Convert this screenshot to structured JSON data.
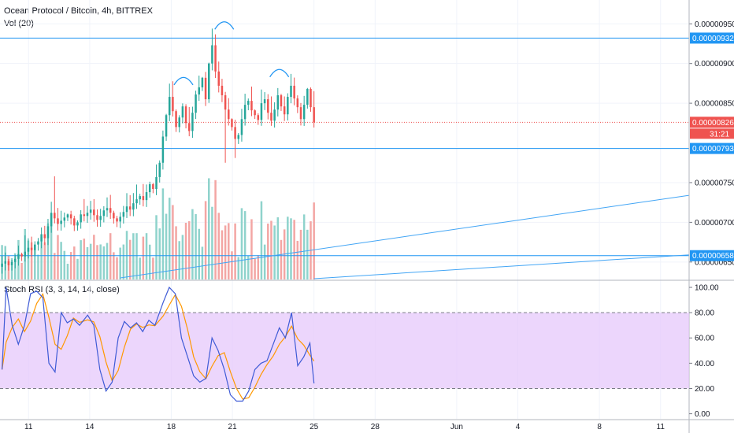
{
  "header": {
    "title": "Ocean Protocol / Bitcoin, 4h, BITTREX",
    "volume_label": "Vol (20)"
  },
  "colors": {
    "up": "#26a69a",
    "down": "#ef5350",
    "vol_up": "#8fd3cc",
    "vol_down": "#f3a6a4",
    "hline": "#2196f3",
    "trend": "#42a5f5",
    "rsi_k": "#3f5bd6",
    "rsi_d": "#ff9800",
    "rsi_band": "#e6c8fb",
    "pattern": "#2196f3",
    "price_tag": "#ef5350",
    "level_tag": "#2196f3"
  },
  "price_panel": {
    "y_ticks": [
      {
        "value": 9.5e-06,
        "label": "0.00000950"
      },
      {
        "value": 9e-06,
        "label": "0.00000900"
      },
      {
        "value": 8.5e-06,
        "label": "0.00000850"
      },
      {
        "value": 7.5e-06,
        "label": "0.00000750"
      },
      {
        "value": 7e-06,
        "label": "0.00000700"
      },
      {
        "value": 6.5e-06,
        "label": "0.00000650"
      }
    ],
    "ylim": [
      6.28e-06,
      9.8e-06
    ],
    "levels": [
      {
        "value": 9.32e-06,
        "label": "0.00000932"
      },
      {
        "value": 7.93e-06,
        "label": "0.00000793"
      },
      {
        "value": 6.58e-06,
        "label": "0.00000658"
      }
    ],
    "last_price": {
      "value": 8.26e-06,
      "label": "0.00000826",
      "countdown": "31:21"
    }
  },
  "rsi_panel": {
    "title": "Stoch RSI (3, 3, 14, 14, close)",
    "y_ticks": [
      {
        "value": 100,
        "label": "100.00"
      },
      {
        "value": 80,
        "label": "80.00"
      },
      {
        "value": 60,
        "label": "60.00"
      },
      {
        "value": 40,
        "label": "40.00"
      },
      {
        "value": 20,
        "label": "20.00"
      },
      {
        "value": 0,
        "label": "0.00"
      }
    ],
    "ylim": [
      -4,
      105
    ],
    "band": [
      20,
      80
    ]
  },
  "x_axis": {
    "ticks": [
      {
        "day": 11,
        "label": "11"
      },
      {
        "day": 14,
        "label": "14"
      },
      {
        "day": 18,
        "label": "18"
      },
      {
        "day": 21,
        "label": "21"
      },
      {
        "day": 25,
        "label": "25"
      },
      {
        "day": 28,
        "label": "28"
      },
      {
        "day": 32,
        "label": "Jun"
      },
      {
        "day": 35,
        "label": "4"
      },
      {
        "day": 39,
        "label": "8"
      },
      {
        "day": 42,
        "label": "11"
      }
    ],
    "xlim": [
      9.6,
      43.4
    ]
  },
  "chart_data": {
    "type": "candlestick",
    "title": "Ocean Protocol / Bitcoin, 4h, BITTREX",
    "x_unit": "day of month (May; 32 = Jun 1)",
    "candles": [],
    "rsi_k": [],
    "rsi_d": [],
    "trendlines": [
      {
        "from": [
          15.5,
          6.3e-06
        ],
        "to": [
          43.4,
          7.34e-06
        ]
      },
      {
        "from": [
          25.0,
          6.29e-06
        ],
        "to": [
          43.4,
          6.59e-06
        ]
      }
    ],
    "pattern_arcs": [
      {
        "center_day": 18.6,
        "price": 8.8e-06
      },
      {
        "center_day": 20.6,
        "price": 9.5e-06
      },
      {
        "center_day": 23.3,
        "price": 8.9e-06
      }
    ]
  }
}
